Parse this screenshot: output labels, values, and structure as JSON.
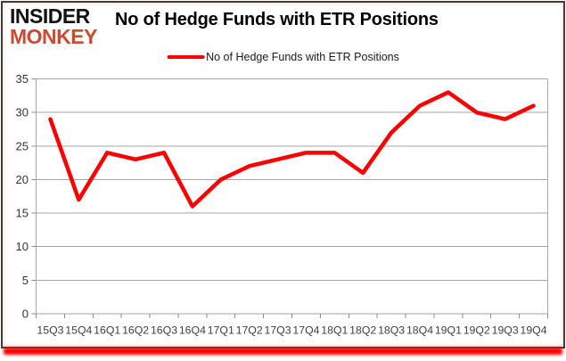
{
  "brand": {
    "line1": "INSIDER",
    "line2": "MONKEY"
  },
  "title": "No of Hedge Funds with ETR Positions",
  "legend": {
    "label": "No of Hedge Funds with ETR Positions"
  },
  "colors": {
    "line": "#fe0000",
    "brand_accent": "#cd4a2f",
    "grid": "#a6a6a6",
    "tick": "#8c8c8c",
    "axis_text": "#3b3f46",
    "glow": "#ff0000"
  },
  "chart_data": {
    "type": "line",
    "title": "No of Hedge Funds with ETR Positions",
    "categories": [
      "15Q3",
      "15Q4",
      "16Q1",
      "16Q2",
      "16Q3",
      "16Q4",
      "17Q1",
      "17Q2",
      "17Q3",
      "17Q4",
      "18Q1",
      "18Q2",
      "18Q3",
      "18Q4",
      "19Q1",
      "19Q2",
      "19Q3",
      "19Q4"
    ],
    "series": [
      {
        "name": "No of Hedge Funds with ETR Positions",
        "values": [
          29,
          17,
          24,
          23,
          24,
          16,
          20,
          22,
          23,
          24,
          24,
          21,
          27,
          31,
          33,
          30,
          29,
          31
        ]
      }
    ],
    "xlabel": "",
    "ylabel": "",
    "ylim": [
      0,
      35
    ],
    "ytick_step": 5,
    "grid": true,
    "legend_position": "top-center"
  }
}
